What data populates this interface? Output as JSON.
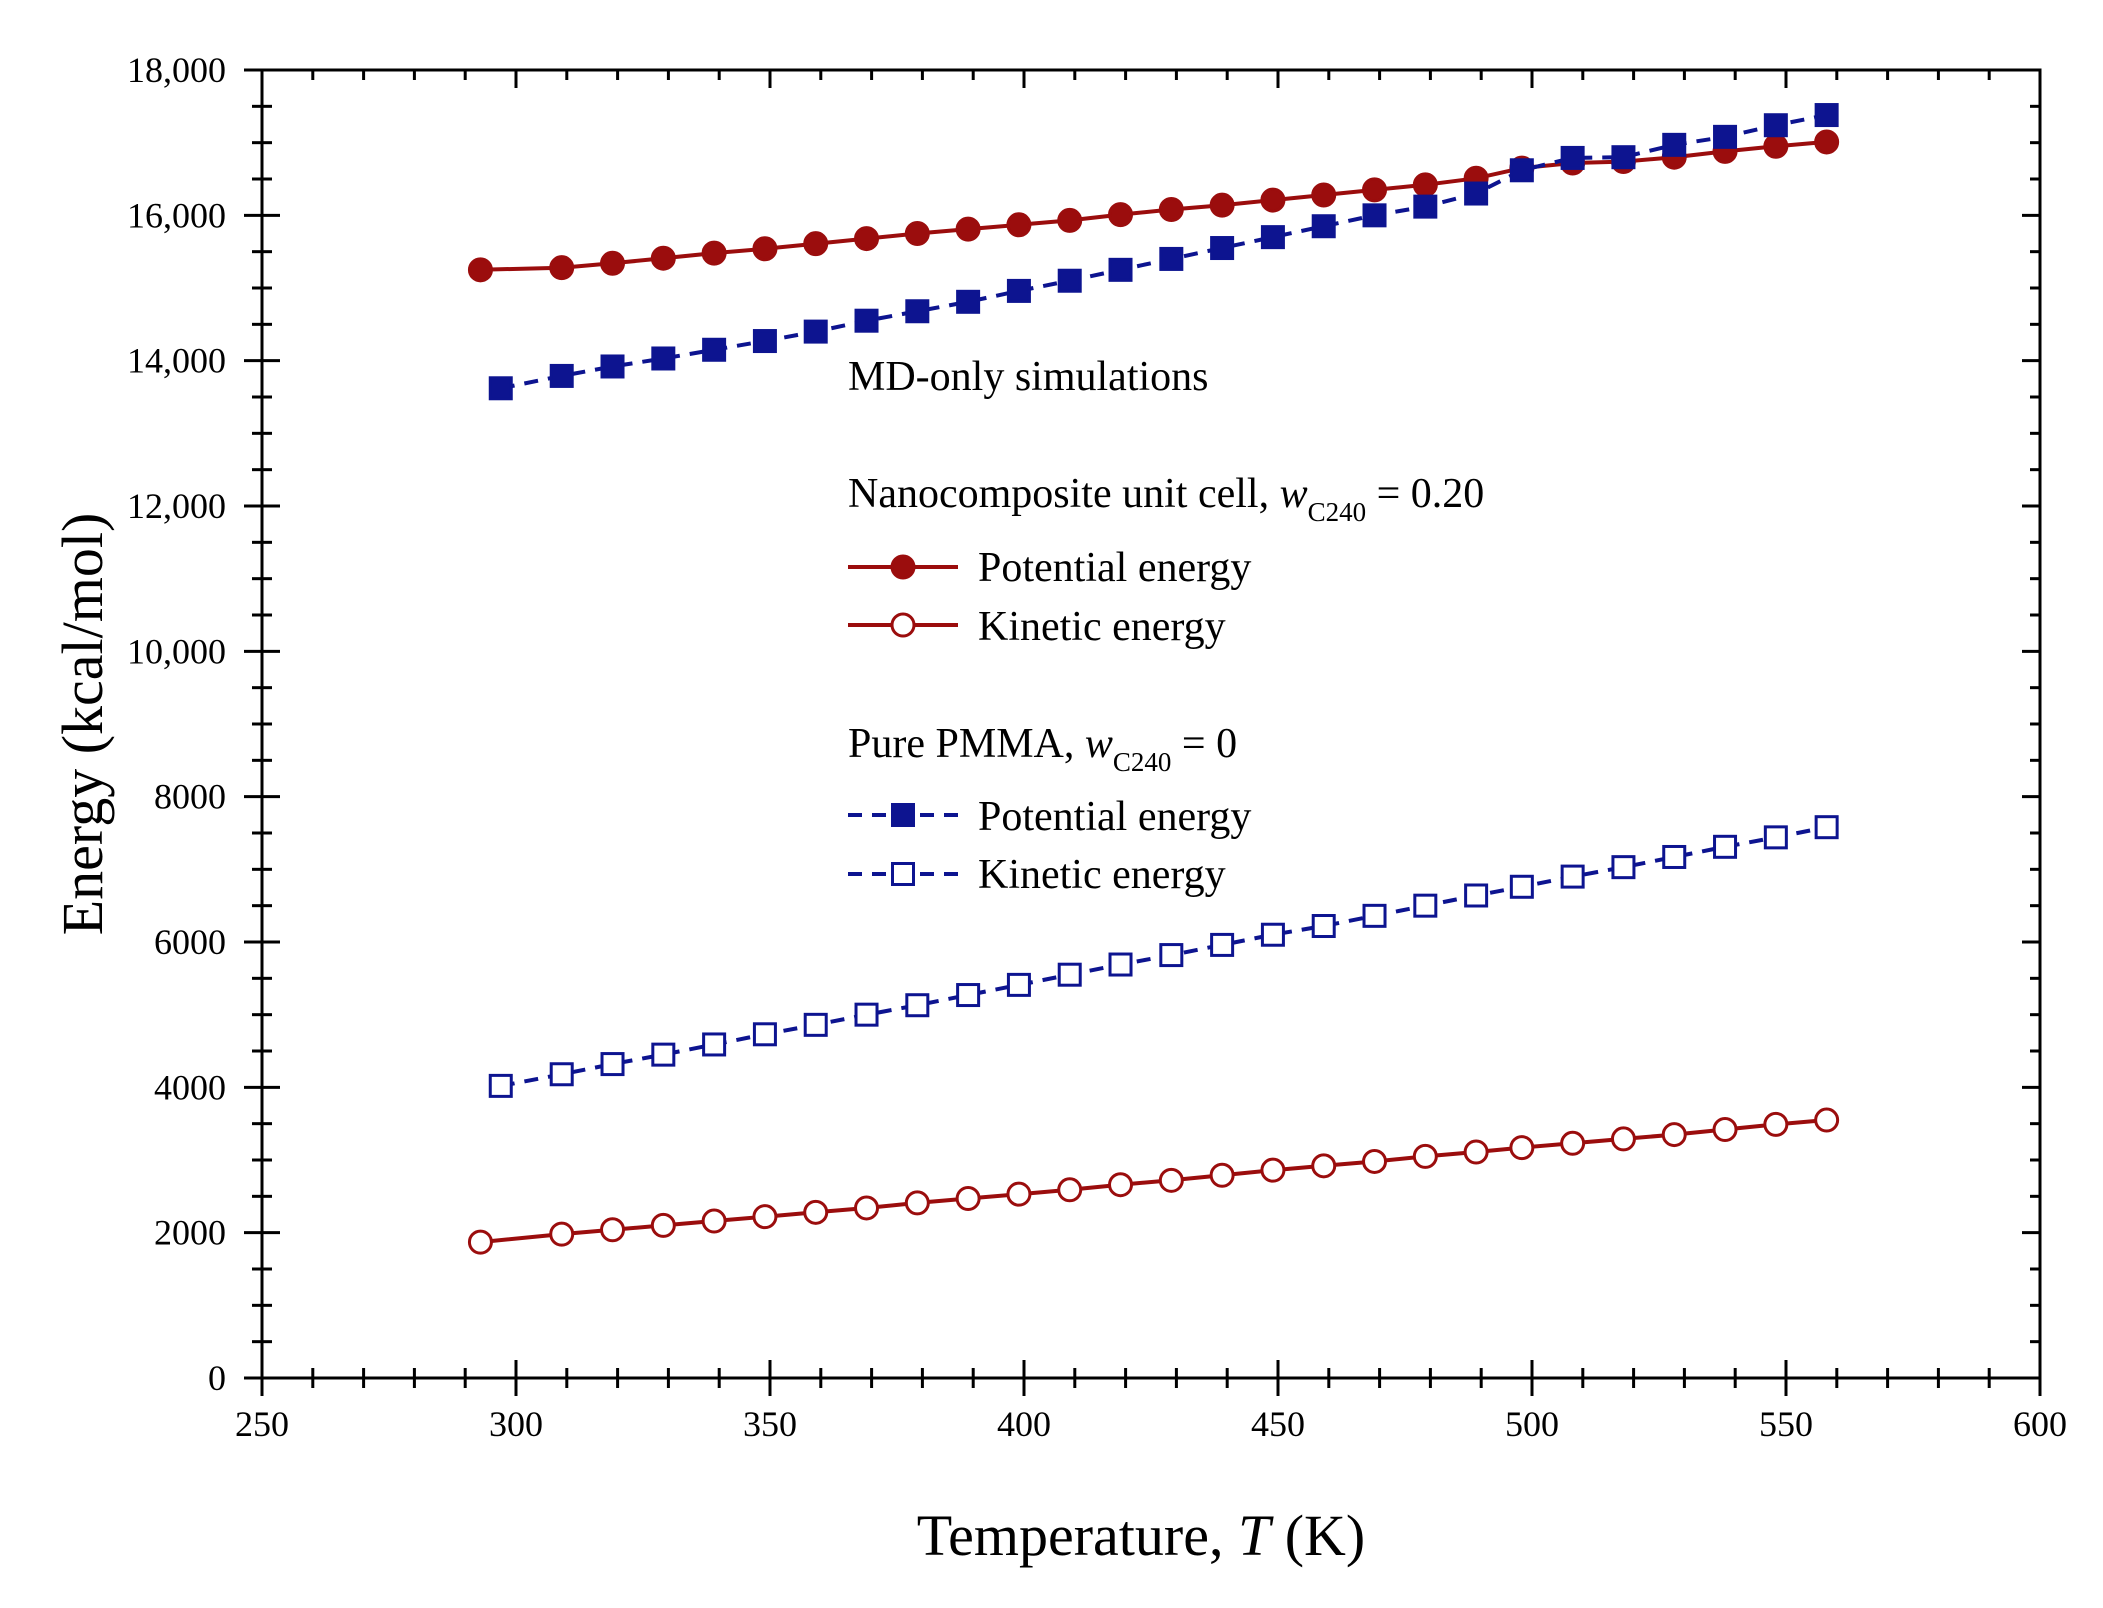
{
  "colors": {
    "nanocomposite": "#9b0d0d",
    "pmma": "#0d1490",
    "axis": "#000000"
  },
  "chart_data": {
    "type": "line",
    "title": "",
    "xlabel_main": "Temperature, ",
    "xlabel_var": "T",
    "xlabel_unit": " (K)",
    "ylabel": "Energy (kcal/mol)",
    "xlim": [
      250,
      600
    ],
    "ylim": [
      0,
      18000
    ],
    "x_ticks": [
      250,
      300,
      350,
      400,
      450,
      500,
      550,
      600
    ],
    "x_tick_labels": [
      "250",
      "300",
      "350",
      "400",
      "450",
      "500",
      "550",
      "600"
    ],
    "y_ticks": [
      0,
      2000,
      4000,
      6000,
      8000,
      10000,
      12000,
      14000,
      16000,
      18000
    ],
    "y_tick_labels": [
      "0",
      "2000",
      "4000",
      "6000",
      "8000",
      "10,000",
      "12,000",
      "14,000",
      "16,000",
      "18,000"
    ],
    "legend": {
      "heading": "MD-only simulations",
      "group1_prefix": "Nanocomposite unit cell, ",
      "group1_var": "w",
      "group1_sub": "C240",
      "group1_suffix": " = 0.20",
      "group2_prefix": "Pure PMMA, ",
      "group2_var": "w",
      "group2_sub": "C240",
      "group2_suffix": " = 0",
      "entry_potential": "Potential energy",
      "entry_kinetic": "Kinetic energy"
    },
    "x_nano": [
      293,
      309,
      319,
      329,
      339,
      349,
      359,
      369,
      379,
      389,
      399,
      409,
      419,
      429,
      439,
      449,
      459,
      469,
      479,
      489,
      498,
      508,
      518,
      528,
      538,
      548,
      558
    ],
    "x_pmma": [
      297,
      309,
      319,
      329,
      339,
      349,
      359,
      369,
      379,
      389,
      399,
      409,
      419,
      429,
      439,
      449,
      459,
      469,
      479,
      489,
      498,
      508,
      518,
      528,
      538,
      548,
      558
    ],
    "series": [
      {
        "name": "Nanocomposite Potential energy",
        "group": "nanocomposite",
        "style": "solid",
        "marker": "circle-filled",
        "values": [
          15250,
          15280,
          15340,
          15410,
          15480,
          15540,
          15610,
          15680,
          15750,
          15810,
          15870,
          15930,
          16010,
          16080,
          16140,
          16210,
          16280,
          16350,
          16420,
          16510,
          16650,
          16720,
          16740,
          16800,
          16880,
          16950,
          17010
        ]
      },
      {
        "name": "Nanocomposite Kinetic energy",
        "group": "nanocomposite",
        "style": "solid",
        "marker": "circle-open",
        "values": [
          1870,
          1980,
          2040,
          2100,
          2160,
          2220,
          2280,
          2340,
          2410,
          2470,
          2530,
          2590,
          2660,
          2720,
          2790,
          2860,
          2920,
          2980,
          3050,
          3110,
          3170,
          3230,
          3290,
          3350,
          3420,
          3490,
          3550
        ]
      },
      {
        "name": "Pure PMMA Potential energy",
        "group": "pmma",
        "style": "dashed",
        "marker": "square-filled",
        "values": [
          13620,
          13790,
          13920,
          14030,
          14150,
          14270,
          14400,
          14550,
          14680,
          14810,
          14960,
          15100,
          15250,
          15400,
          15550,
          15700,
          15850,
          16000,
          16120,
          16300,
          16620,
          16790,
          16800,
          16970,
          17080,
          17240,
          17380
        ]
      },
      {
        "name": "Pure PMMA Kinetic energy",
        "group": "pmma",
        "style": "dashed",
        "marker": "square-open",
        "values": [
          4020,
          4180,
          4320,
          4450,
          4590,
          4730,
          4860,
          5000,
          5130,
          5270,
          5410,
          5550,
          5690,
          5820,
          5960,
          6100,
          6220,
          6360,
          6500,
          6640,
          6760,
          6900,
          7030,
          7170,
          7310,
          7440,
          7580
        ]
      }
    ]
  }
}
